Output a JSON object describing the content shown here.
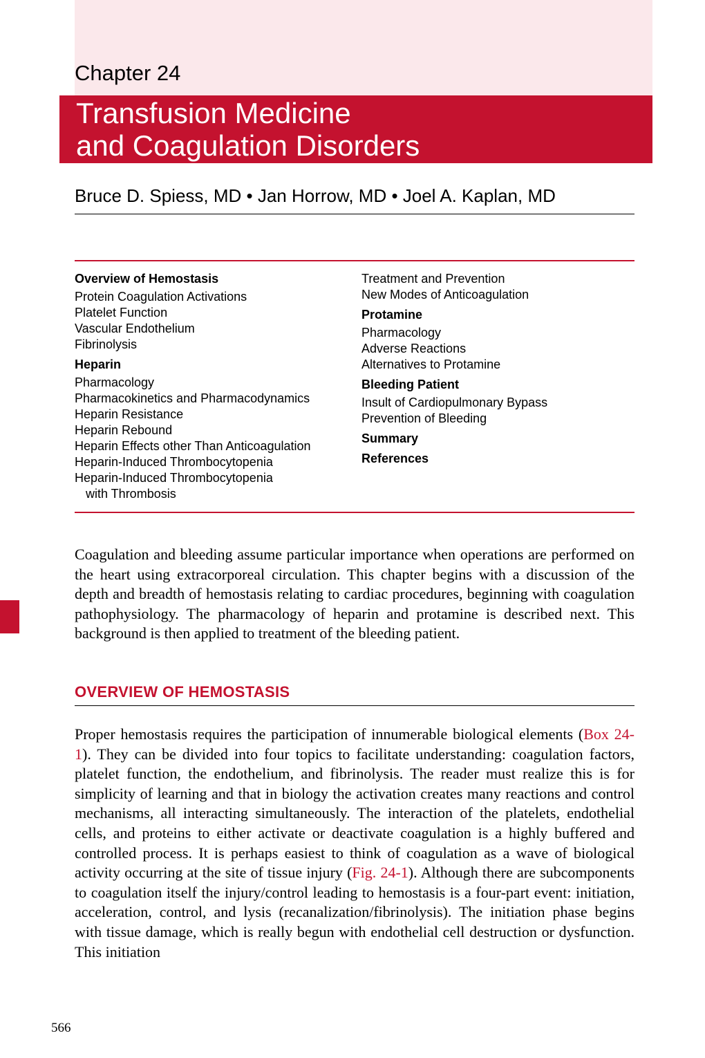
{
  "colors": {
    "brand_red": "#c4122f",
    "light_pink": "#fbe8eb",
    "text": "#000000",
    "white": "#ffffff"
  },
  "chapter_label": "Chapter 24",
  "title_line1": "Transfusion Medicine",
  "title_line2": "and Coagulation Disorders",
  "authors": "Bruce D. Spiess, MD  •  Jan Horrow, MD  •  Joel A. Kaplan, MD",
  "toc": {
    "left": [
      {
        "t": "h",
        "v": "Overview of Hemostasis"
      },
      {
        "t": "i",
        "v": "Protein Coagulation Activations"
      },
      {
        "t": "i",
        "v": "Platelet Function"
      },
      {
        "t": "i",
        "v": "Vascular Endothelium"
      },
      {
        "t": "i",
        "v": "Fibrinolysis"
      },
      {
        "t": "h",
        "v": "Heparin"
      },
      {
        "t": "i",
        "v": "Pharmacology"
      },
      {
        "t": "i",
        "v": "Pharmacokinetics and Pharmacodynamics"
      },
      {
        "t": "i",
        "v": "Heparin Resistance"
      },
      {
        "t": "i",
        "v": "Heparin Rebound"
      },
      {
        "t": "i",
        "v": "Heparin Effects other Than Anticoagulation"
      },
      {
        "t": "i",
        "v": "Heparin-Induced Thrombocytopenia"
      },
      {
        "t": "i",
        "v": "Heparin-Induced Thrombocytopenia"
      },
      {
        "t": "ii",
        "v": "with Thrombosis"
      }
    ],
    "right": [
      {
        "t": "i",
        "v": "Treatment and Prevention"
      },
      {
        "t": "i",
        "v": "New Modes of Anticoagulation"
      },
      {
        "t": "h",
        "v": "Protamine"
      },
      {
        "t": "i",
        "v": "Pharmacology"
      },
      {
        "t": "i",
        "v": "Adverse Reactions"
      },
      {
        "t": "i",
        "v": "Alternatives to Protamine"
      },
      {
        "t": "h",
        "v": "Bleeding Patient"
      },
      {
        "t": "i",
        "v": "Insult of Cardiopulmonary Bypass"
      },
      {
        "t": "i",
        "v": "Prevention of Bleeding"
      },
      {
        "t": "h",
        "v": "Summary"
      },
      {
        "t": "h",
        "v": "References"
      }
    ]
  },
  "intro_paragraph": "Coagulation and bleeding assume particular importance when operations are performed on the heart using extracorporeal circulation. This chapter begins with a discussion of the depth and breadth of hemostasis relating to cardiac procedures, beginning with coagulation pathophysiology. The pharmacology of heparin and protamine is described next. This background is then applied to treatment of the bleeding patient.",
  "section1_heading": "OVERVIEW OF HEMOSTASIS",
  "main_para_pre": "Proper hemostasis requires the participation of innumerable biological elements (",
  "box_ref": "Box 24-1",
  "main_para_mid": "). They can be divided into four topics to facilitate understanding: coagulation factors, platelet function, the endothelium, and fibrinolysis. The reader must realize this is for simplicity of learning and that in biology the activation creates many reactions and control mechanisms, all interacting simultaneously. The interaction of the platelets, endothelial cells, and proteins to either activate or deactivate coagulation is a highly buffered and controlled process. It is perhaps easiest to think of coagulation as a wave of biological activity occurring at the site of tissue injury (",
  "fig_ref": "Fig. 24-1",
  "main_para_post": "). Although there are subcomponents to coagulation itself the injury/control leading to hemostasis is a four-part event: initiation, acceleration, control, and lysis (recanalization/fibrinolysis). The initiation phase begins with tissue damage, which is really begun with endothelial cell destruction or dysfunction. This initiation",
  "page_number": "566"
}
